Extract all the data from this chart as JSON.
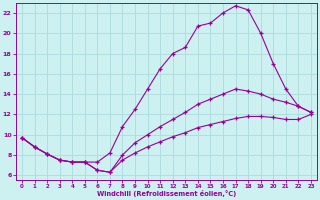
{
  "xlabel": "Windchill (Refroidissement éolien,°C)",
  "bg_color": "#cdf0f0",
  "line_color": "#990099",
  "grid_color": "#b0dede",
  "xlim_min": -0.5,
  "xlim_max": 23.5,
  "ylim_min": 5.5,
  "ylim_max": 23.0,
  "xticks": [
    0,
    1,
    2,
    3,
    4,
    5,
    6,
    7,
    8,
    9,
    10,
    11,
    12,
    13,
    14,
    15,
    16,
    17,
    18,
    19,
    20,
    21,
    22,
    23
  ],
  "yticks": [
    6,
    8,
    10,
    12,
    14,
    16,
    18,
    20,
    22
  ],
  "s_peak_x": [
    0,
    1,
    2,
    3,
    4,
    5,
    6,
    7,
    8,
    9,
    10,
    11,
    12,
    13,
    14,
    15,
    16,
    17,
    18,
    19,
    20,
    21,
    22,
    23
  ],
  "s_peak_y": [
    9.7,
    8.8,
    8.1,
    7.5,
    7.3,
    7.3,
    7.3,
    8.2,
    10.8,
    12.5,
    14.5,
    16.5,
    18.0,
    18.6,
    20.7,
    21.0,
    22.0,
    22.7,
    22.3,
    20.0,
    17.0,
    14.5,
    12.8,
    12.2
  ],
  "s_mid_x": [
    0,
    1,
    2,
    3,
    4,
    5,
    6,
    7,
    8,
    9,
    10,
    11,
    12,
    13,
    14,
    15,
    16,
    17,
    18,
    19,
    20,
    21,
    22,
    23
  ],
  "s_mid_y": [
    9.7,
    8.8,
    8.1,
    7.5,
    7.3,
    7.3,
    6.5,
    6.3,
    8.0,
    9.2,
    10.0,
    10.8,
    11.5,
    12.2,
    13.0,
    13.5,
    14.0,
    14.5,
    14.3,
    14.0,
    13.5,
    13.2,
    12.8,
    12.2
  ],
  "s_low_x": [
    0,
    1,
    2,
    3,
    4,
    5,
    6,
    7,
    8,
    9,
    10,
    11,
    12,
    13,
    14,
    15,
    16,
    17,
    18,
    19,
    20,
    21,
    22,
    23
  ],
  "s_low_y": [
    9.7,
    8.8,
    8.1,
    7.5,
    7.3,
    7.3,
    6.5,
    6.3,
    7.5,
    8.2,
    8.8,
    9.3,
    9.8,
    10.2,
    10.7,
    11.0,
    11.3,
    11.6,
    11.8,
    11.8,
    11.7,
    11.5,
    11.5,
    12.0
  ]
}
